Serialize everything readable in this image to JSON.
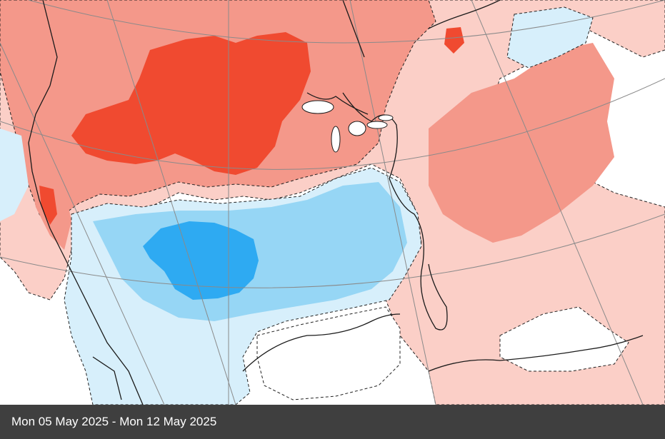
{
  "map": {
    "description_icon": "anomaly-map",
    "colors": {
      "strong_warm": "#f04a30",
      "moderate_warm": "#f4988a",
      "weak_warm": "#fbcfc7",
      "neutral": "#ffffff",
      "weak_cool": "#d7effb",
      "moderate_cool": "#96d6f5",
      "strong_cool": "#2eaaf2",
      "coastline": "#1a1a1a",
      "gridline": "#8a8a8a"
    }
  },
  "caption": {
    "date_range": "Mon 05 May 2025 - Mon 12 May 2025"
  }
}
